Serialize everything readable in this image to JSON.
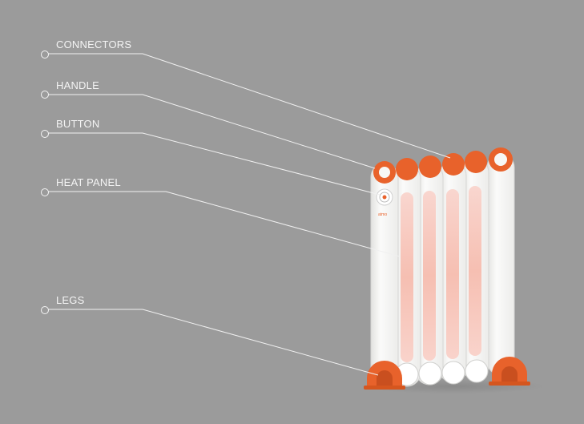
{
  "callouts": [
    {
      "id": "connectors",
      "label": "CONNECTORS"
    },
    {
      "id": "handle",
      "label": "HANDLE"
    },
    {
      "id": "button",
      "label": "BUTTON"
    },
    {
      "id": "heat-panel",
      "label": "HEAT PANEL"
    },
    {
      "id": "legs",
      "label": "LEGS"
    }
  ],
  "product": {
    "brand_text": "atmo"
  },
  "colors": {
    "background": "#9b9b9b",
    "accent": "#e8622b",
    "body": "#f7f7f5",
    "glow": "#f7c7bd",
    "line": "#f2f2f2"
  }
}
